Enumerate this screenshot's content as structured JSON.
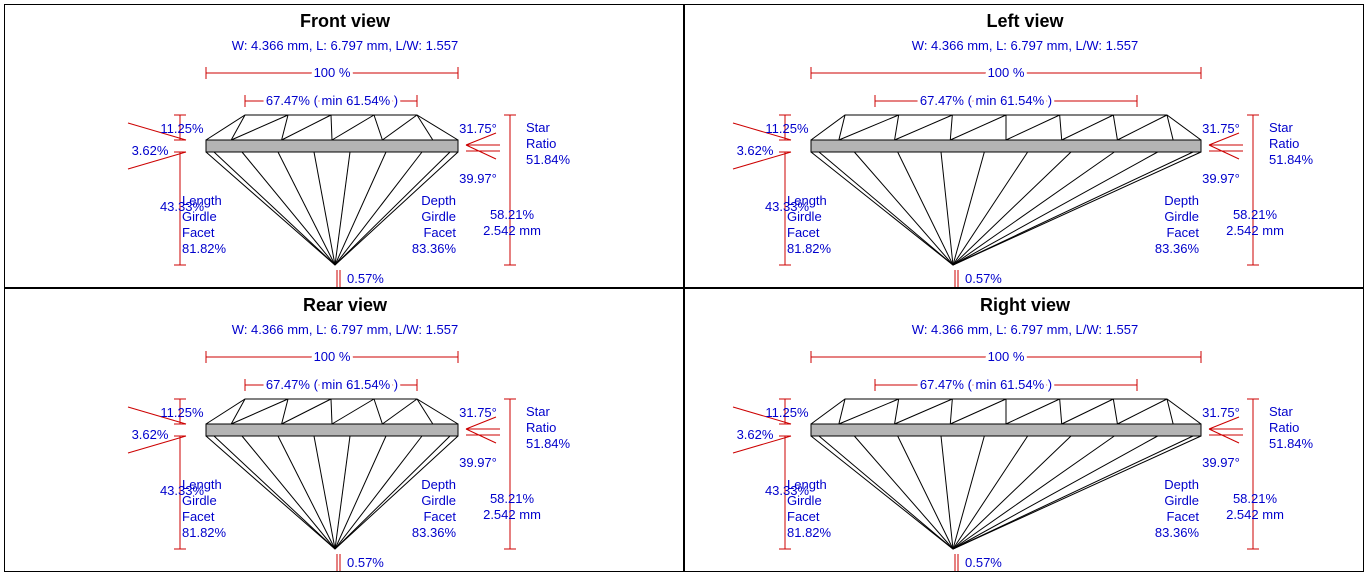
{
  "views": [
    {
      "title": "Front view",
      "kind": "front",
      "dims": "W: 4.366 mm, L: 6.797 mm, L/W: 1.557",
      "width_pct": "100 %",
      "table_pct": "67.47% ( min 61.54% )",
      "crown_height": "11.25%",
      "girdle": "3.62%",
      "pavilion_depth": "43.33%",
      "crown_angle": "31.75°",
      "pavilion_angle": "39.97°",
      "star_ratio": [
        "Star",
        "Ratio",
        "51.84%"
      ],
      "total_depth": [
        "58.21%",
        "2.542 mm"
      ],
      "length_girdle_facet": [
        "Length",
        "Girdle",
        "Facet",
        "81.82%"
      ],
      "depth_girdle_facet": [
        "Depth",
        "Girdle",
        "Facet",
        "83.36%"
      ],
      "culet": "0.57%"
    },
    {
      "title": "Left view",
      "kind": "side",
      "dims": "W: 4.366 mm, L: 6.797 mm, L/W: 1.557",
      "width_pct": "100 %",
      "table_pct": "67.47% ( min 61.54% )",
      "crown_height": "11.25%",
      "girdle": "3.62%",
      "pavilion_depth": "43.33%",
      "crown_angle": "31.75°",
      "pavilion_angle": "39.97°",
      "star_ratio": [
        "Star",
        "Ratio",
        "51.84%"
      ],
      "total_depth": [
        "58.21%",
        "2.542 mm"
      ],
      "length_girdle_facet": [
        "Length",
        "Girdle",
        "Facet",
        "81.82%"
      ],
      "depth_girdle_facet": [
        "Depth",
        "Girdle",
        "Facet",
        "83.36%"
      ],
      "culet": "0.57%"
    },
    {
      "title": "Rear view",
      "kind": "front",
      "dims": "W: 4.366 mm, L: 6.797 mm, L/W: 1.557",
      "width_pct": "100 %",
      "table_pct": "67.47% ( min 61.54% )",
      "crown_height": "11.25%",
      "girdle": "3.62%",
      "pavilion_depth": "43.33%",
      "crown_angle": "31.75°",
      "pavilion_angle": "39.97°",
      "star_ratio": [
        "Star",
        "Ratio",
        "51.84%"
      ],
      "total_depth": [
        "58.21%",
        "2.542 mm"
      ],
      "length_girdle_facet": [
        "Length",
        "Girdle",
        "Facet",
        "81.82%"
      ],
      "depth_girdle_facet": [
        "Depth",
        "Girdle",
        "Facet",
        "83.36%"
      ],
      "culet": "0.57%"
    },
    {
      "title": "Right view",
      "kind": "side",
      "dims": "W: 4.366 mm, L: 6.797 mm, L/W: 1.557",
      "width_pct": "100 %",
      "table_pct": "67.47% ( min 61.54% )",
      "crown_height": "11.25%",
      "girdle": "3.62%",
      "pavilion_depth": "43.33%",
      "crown_angle": "31.75°",
      "pavilion_angle": "39.97°",
      "star_ratio": [
        "Star",
        "Ratio",
        "51.84%"
      ],
      "total_depth": [
        "58.21%",
        "2.542 mm"
      ],
      "length_girdle_facet": [
        "Length",
        "Girdle",
        "Facet",
        "81.82%"
      ],
      "depth_girdle_facet": [
        "Depth",
        "Girdle",
        "Facet",
        "83.36%"
      ],
      "culet": "0.57%"
    }
  ],
  "colors": {
    "text": "#0000cc",
    "dimension": "#cc0000",
    "outline": "#000000",
    "girdle_fill": "#b4b4b4"
  }
}
